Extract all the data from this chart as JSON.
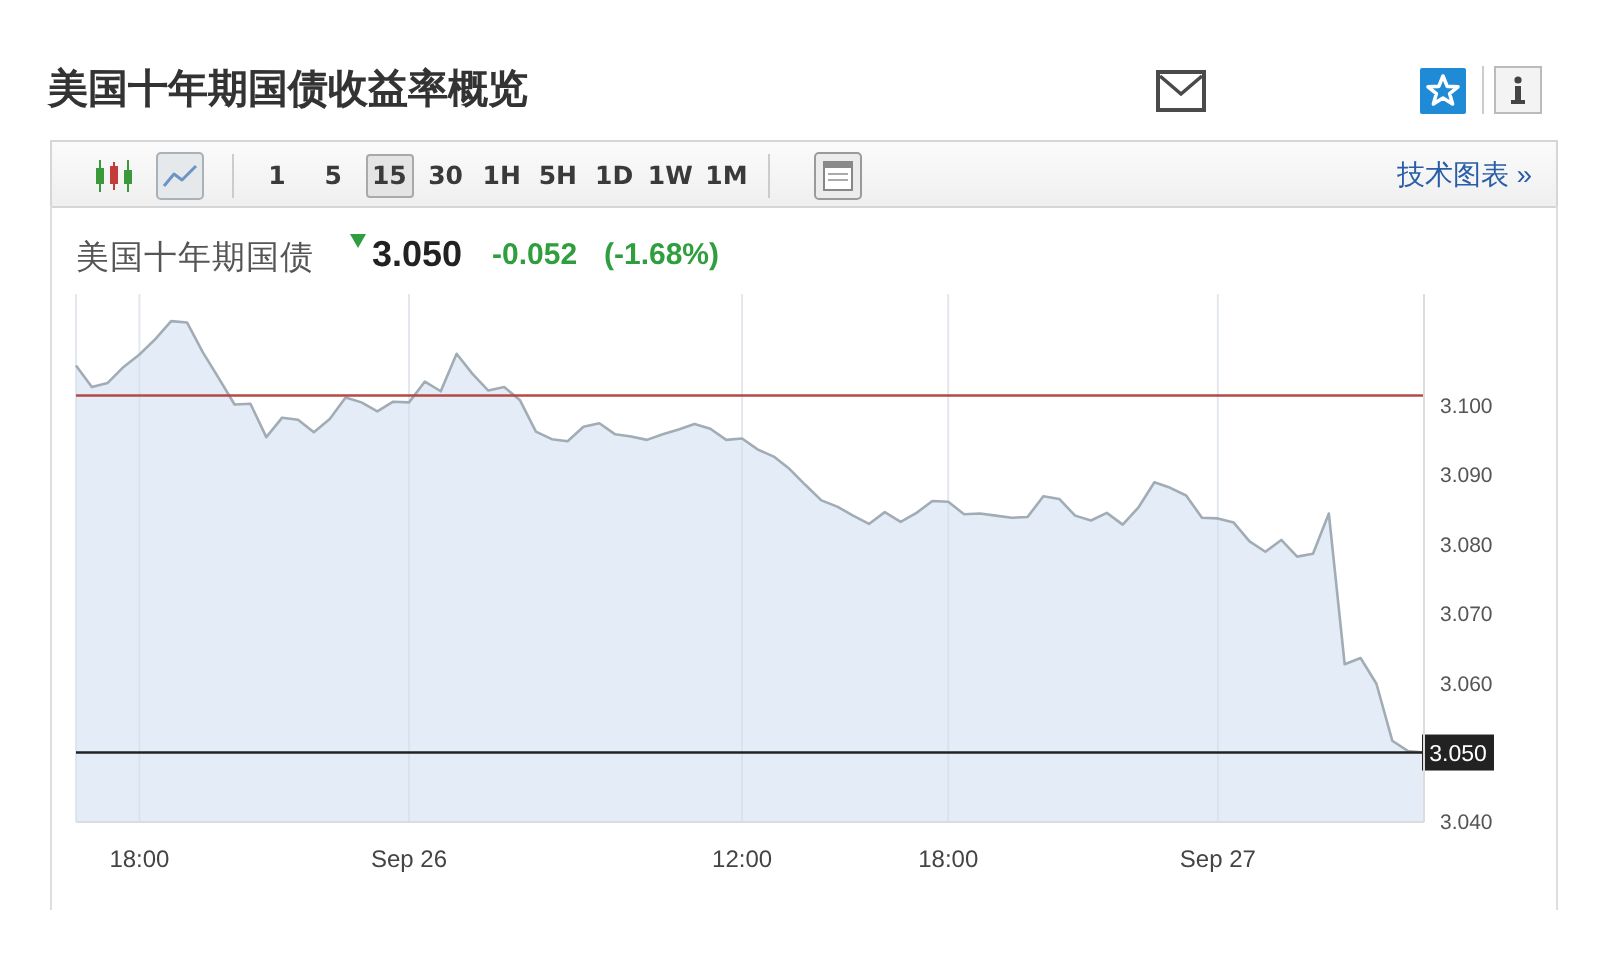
{
  "chart_data": {
    "type": "area",
    "title": "美国十年期国债收益率概览",
    "subtitle": "美国十年期国债",
    "annotations": [
      "3.050",
      "-0.052",
      "(-1.68%)",
      "1 5 15 30 1H 5H 1D 1W 1M",
      "技术图表 »"
    ],
    "categories": [
      null,
      null,
      null,
      null,
      "18:00",
      null,
      null,
      null,
      null,
      null,
      null,
      null,
      null,
      null,
      null,
      null,
      null,
      null,
      null,
      null,
      null,
      "Sep 26",
      null,
      null,
      null,
      null,
      null,
      null,
      null,
      null,
      null,
      null,
      null,
      null,
      null,
      null,
      null,
      null,
      null,
      null,
      null,
      null,
      "12:00",
      null,
      null,
      null,
      null,
      null,
      null,
      null,
      null,
      null,
      null,
      null,
      null,
      "18:00",
      null,
      null,
      null,
      null,
      null,
      null,
      null,
      null,
      null,
      null,
      null,
      null,
      null,
      null,
      null,
      null,
      "Sep 27",
      null,
      null,
      null,
      null,
      null,
      null,
      null,
      null,
      null,
      null,
      null,
      null,
      null
    ],
    "series": [
      {
        "color": "#a2acb5",
        "values": [
          3.1057,
          3.1026,
          3.1032,
          3.1055,
          3.1073,
          3.1095,
          3.1121,
          3.1119,
          3.1076,
          3.1039,
          3.1001,
          3.1002,
          3.0954,
          3.0982,
          3.0979,
          3.0961,
          3.098,
          3.1011,
          3.1004,
          3.0991,
          3.1005,
          3.1004,
          3.1034,
          3.102,
          3.1074,
          3.1045,
          3.1021,
          3.1026,
          3.1007,
          3.0962,
          3.0951,
          3.0948,
          3.0969,
          3.0974,
          3.0958,
          3.0955,
          3.095,
          3.0958,
          3.0965,
          3.0973,
          3.0966,
          3.095,
          3.0952,
          3.0936,
          3.0926,
          3.0908,
          3.0885,
          3.0863,
          3.0854,
          3.0841,
          3.0829,
          3.0846,
          3.0832,
          3.0845,
          3.0862,
          3.0861,
          3.0843,
          3.0844,
          3.0841,
          3.0838,
          3.0839,
          3.0869,
          3.0865,
          3.0841,
          3.0834,
          3.0845,
          3.0828,
          3.0853,
          3.0889,
          3.0881,
          3.087,
          3.0838,
          3.0837,
          3.0831,
          3.0804,
          3.0789,
          3.0806,
          3.0782,
          3.0786,
          3.0844,
          3.0627,
          3.0636,
          3.0599,
          3.0517,
          3.0502,
          3.05
        ]
      }
    ],
    "ylim": [
      3.04,
      3.116
    ],
    "yticks": [
      {
        "value": 3.04,
        "label": "3.040"
      },
      {
        "value": 3.06,
        "label": "3.060"
      },
      {
        "value": 3.07,
        "label": "3.070"
      },
      {
        "value": 3.08,
        "label": "3.080"
      },
      {
        "value": 3.09,
        "label": "3.090"
      },
      {
        "value": 3.1,
        "label": "3.100"
      }
    ],
    "ref_lines": [
      {
        "axis": "y",
        "value": 3.1014,
        "color": "#b24a45"
      },
      {
        "axis": "y",
        "value": 3.05,
        "label": "3.050",
        "color": "#222222"
      }
    ],
    "grid": "x"
  }
}
